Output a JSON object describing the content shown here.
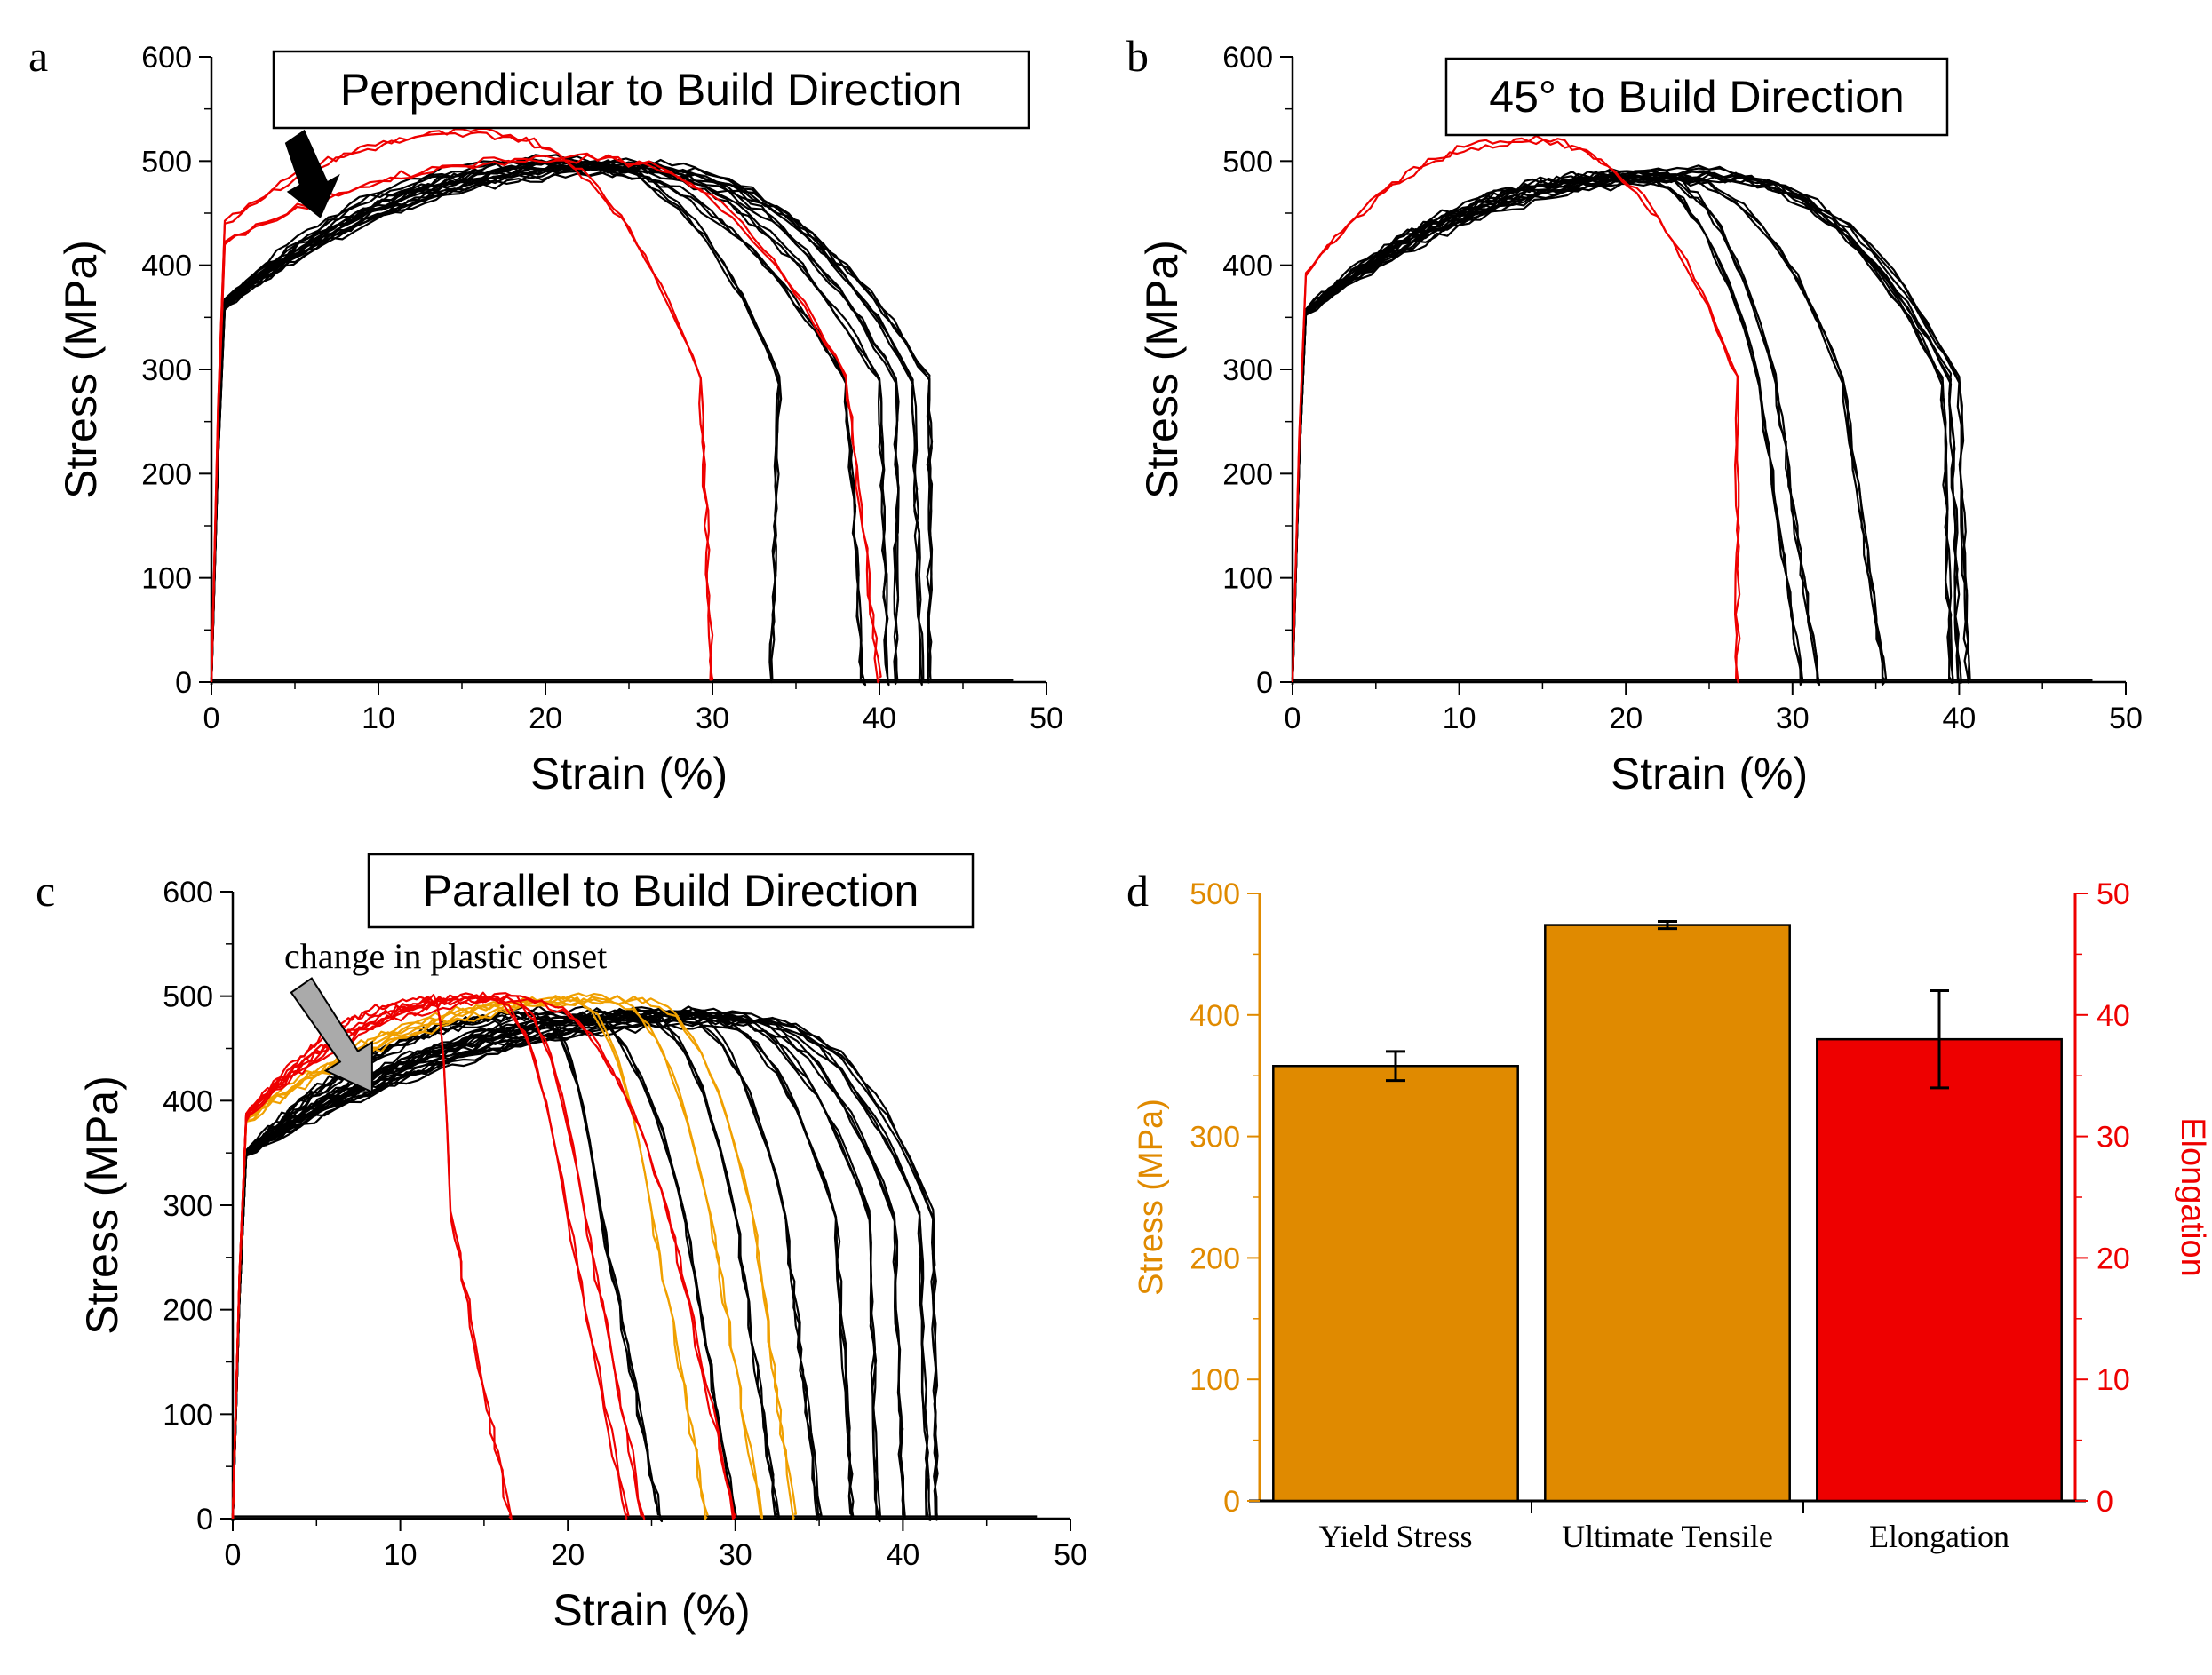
{
  "colors": {
    "black": "#000000",
    "red": "#ee0000",
    "orange": "#f0a000",
    "bar_orange": "#e08a00",
    "bar_red": "#ee0000",
    "arrow_gray": "#aaaaaa"
  },
  "chart_data": [
    {
      "panel": "a",
      "type": "line",
      "title": "Perpendicular to Build Direction",
      "xlabel": "Strain (%)",
      "ylabel": "Stress (MPa)",
      "xlim": [
        0,
        50
      ],
      "ylim": [
        0,
        600
      ],
      "xticks": [
        0,
        10,
        20,
        30,
        40,
        50
      ],
      "yticks": [
        0,
        100,
        200,
        300,
        400,
        500,
        600
      ],
      "annotation_arrow": {
        "color": "black",
        "target": [
          6,
          445
        ]
      },
      "series": [
        {
          "color": "black",
          "peak": 495,
          "peak_at": 22,
          "fracture": 34,
          "drop_end": 33.5,
          "knee": 365
        },
        {
          "color": "black",
          "peak": 500,
          "peak_at": 20,
          "fracture": 38,
          "drop_end": 39,
          "knee": 365
        },
        {
          "color": "black",
          "peak": 498,
          "peak_at": 22,
          "fracture": 40,
          "drop_end": 40.5,
          "knee": 360
        },
        {
          "color": "black",
          "peak": 495,
          "peak_at": 24,
          "fracture": 41,
          "drop_end": 41,
          "knee": 365
        },
        {
          "color": "black",
          "peak": 497,
          "peak_at": 25,
          "fracture": 42,
          "drop_end": 42.5,
          "knee": 360
        },
        {
          "color": "black",
          "peak": 490,
          "peak_at": 25,
          "fracture": 43,
          "drop_end": 43,
          "knee": 365
        },
        {
          "color": "red",
          "peak": 525,
          "peak_at": 16,
          "fracture": 29.3,
          "drop_end": 30,
          "knee": 440
        },
        {
          "color": "red",
          "peak": 502,
          "peak_at": 22,
          "fracture": 38,
          "drop_end": 40,
          "knee": 420
        }
      ]
    },
    {
      "panel": "b",
      "type": "line",
      "title": "45° to Build Direction",
      "xlabel": "Strain (%)",
      "ylabel": "Stress (MPa)",
      "xlim": [
        0,
        50
      ],
      "ylim": [
        0,
        600
      ],
      "xticks": [
        0,
        10,
        20,
        30,
        40,
        50
      ],
      "yticks": [
        0,
        100,
        200,
        300,
        400,
        500,
        600
      ],
      "series": [
        {
          "color": "black",
          "peak": 485,
          "peak_at": 20,
          "fracture": 28,
          "drop_end": 30.5,
          "knee": 355
        },
        {
          "color": "black",
          "peak": 488,
          "peak_at": 21,
          "fracture": 29,
          "drop_end": 31.5,
          "knee": 355
        },
        {
          "color": "black",
          "peak": 485,
          "peak_at": 22,
          "fracture": 33,
          "drop_end": 35.5,
          "knee": 355
        },
        {
          "color": "black",
          "peak": 490,
          "peak_at": 24,
          "fracture": 39,
          "drop_end": 39.5,
          "knee": 355
        },
        {
          "color": "black",
          "peak": 486,
          "peak_at": 24,
          "fracture": 39.5,
          "drop_end": 40,
          "knee": 355
        },
        {
          "color": "black",
          "peak": 484,
          "peak_at": 25,
          "fracture": 40,
          "drop_end": 40.5,
          "knee": 355
        },
        {
          "color": "red",
          "peak": 518,
          "peak_at": 14,
          "fracture": 26.7,
          "drop_end": 26.7,
          "knee": 390
        }
      ]
    },
    {
      "panel": "c",
      "type": "line",
      "title": "Parallel to Build Direction",
      "xlabel": "Strain (%)",
      "ylabel": "Stress (MPa)",
      "xlim": [
        0,
        50
      ],
      "ylim": [
        0,
        600
      ],
      "xticks": [
        0,
        10,
        20,
        30,
        40,
        50
      ],
      "yticks": [
        0,
        100,
        200,
        300,
        400,
        500,
        600
      ],
      "annotation": "change in plastic onset",
      "annotation_arrow": {
        "color": "gray",
        "target": [
          8,
          410
        ]
      },
      "series": [
        {
          "color": "red",
          "peak": 495,
          "peak_at": 12,
          "fracture": 13,
          "drop_end": 16.5,
          "knee": 380
        },
        {
          "color": "red",
          "peak": 497,
          "peak_at": 15,
          "fracture": 20,
          "drop_end": 23.5,
          "knee": 385
        },
        {
          "color": "red",
          "peak": 498,
          "peak_at": 16,
          "fracture": 21,
          "drop_end": 24.5,
          "knee": 385
        },
        {
          "color": "red",
          "peak": 496,
          "peak_at": 17,
          "fracture": 26,
          "drop_end": 30,
          "knee": 385
        },
        {
          "color": "black",
          "peak": 480,
          "peak_at": 18,
          "fracture": 22,
          "drop_end": 25.5,
          "knee": 350
        },
        {
          "color": "black",
          "peak": 485,
          "peak_at": 20,
          "fracture": 27,
          "drop_end": 30,
          "knee": 350
        },
        {
          "color": "orange",
          "peak": 495,
          "peak_at": 20,
          "fracture": 25,
          "drop_end": 28.3,
          "knee": 380
        },
        {
          "color": "orange",
          "peak": 497,
          "peak_at": 22,
          "fracture": 28.5,
          "drop_end": 31.5,
          "knee": 380
        },
        {
          "color": "orange",
          "peak": 495,
          "peak_at": 24,
          "fracture": 31,
          "drop_end": 33.5,
          "knee": 380
        },
        {
          "color": "black",
          "peak": 482,
          "peak_at": 24,
          "fracture": 30,
          "drop_end": 32.5,
          "knee": 350
        },
        {
          "color": "black",
          "peak": 485,
          "peak_at": 26,
          "fracture": 33,
          "drop_end": 35,
          "knee": 350
        },
        {
          "color": "black",
          "peak": 484,
          "peak_at": 27,
          "fracture": 36,
          "drop_end": 37,
          "knee": 350
        },
        {
          "color": "black",
          "peak": 483,
          "peak_at": 28,
          "fracture": 38,
          "drop_end": 38.5,
          "knee": 350
        },
        {
          "color": "black",
          "peak": 480,
          "peak_at": 29,
          "fracture": 39.5,
          "drop_end": 40,
          "knee": 350
        },
        {
          "color": "black",
          "peak": 478,
          "peak_at": 30,
          "fracture": 41,
          "drop_end": 41.5,
          "knee": 350
        },
        {
          "color": "black",
          "peak": 476,
          "peak_at": 31,
          "fracture": 41.8,
          "drop_end": 42,
          "knee": 350
        }
      ]
    },
    {
      "panel": "d",
      "type": "bar",
      "categories": [
        "Yield Stress",
        "Ultimate Tensile",
        "Elongation"
      ],
      "values": [
        358,
        474,
        38
      ],
      "errors": [
        12,
        3,
        4
      ],
      "axis": [
        "left",
        "left",
        "right"
      ],
      "bar_colors": [
        "#e08a00",
        "#e08a00",
        "#ee0000"
      ],
      "ylabel_left": "Stress (MPa)",
      "ylabel_right": "Elongation",
      "ylim_left": [
        0,
        500
      ],
      "ylim_right": [
        0,
        50
      ],
      "yticks_left": [
        0,
        100,
        200,
        300,
        400,
        500
      ],
      "yticks_right": [
        0,
        10,
        20,
        30,
        40,
        50
      ]
    }
  ]
}
